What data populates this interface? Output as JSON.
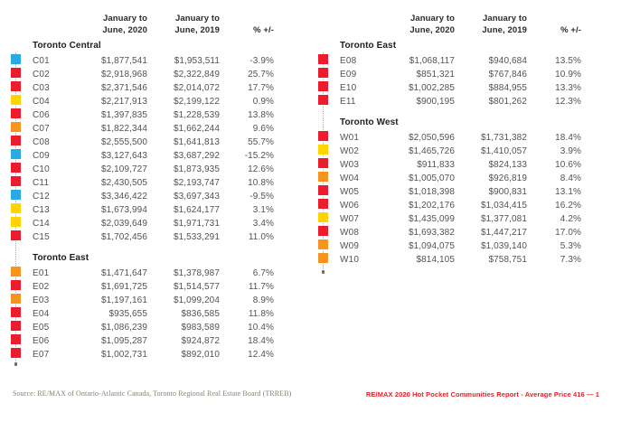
{
  "colors": {
    "blue": "#29abe2",
    "red": "#ec1b2d",
    "yellow": "#ffd400",
    "orange": "#f7941e"
  },
  "column_headers": {
    "period_2020": "January to\nJune, 2020",
    "period_2019": "January to\nJune, 2019",
    "change": "% +/-"
  },
  "tables": [
    {
      "sections": [
        {
          "title": "Toronto Central",
          "rows": [
            {
              "code": "C01",
              "color": "blue",
              "v2020": "$1,877,541",
              "v2019": "$1,953,511",
              "change": "-3.9%"
            },
            {
              "code": "C02",
              "color": "red",
              "v2020": "$2,918,968",
              "v2019": "$2,322,849",
              "change": "25.7%"
            },
            {
              "code": "C03",
              "color": "red",
              "v2020": "$2,371,546",
              "v2019": "$2,014,072",
              "change": "17.7%"
            },
            {
              "code": "C04",
              "color": "yellow",
              "v2020": "$2,217,913",
              "v2019": "$2,199,122",
              "change": "0.9%"
            },
            {
              "code": "C06",
              "color": "red",
              "v2020": "$1,397,835",
              "v2019": "$1,228,539",
              "change": "13.8%"
            },
            {
              "code": "C07",
              "color": "orange",
              "v2020": "$1,822,344",
              "v2019": "$1,662,244",
              "change": "9.6%"
            },
            {
              "code": "C08",
              "color": "red",
              "v2020": "$2,555,500",
              "v2019": "$1,641,813",
              "change": "55.7%"
            },
            {
              "code": "C09",
              "color": "blue",
              "v2020": "$3,127,643",
              "v2019": "$3,687,292",
              "change": "-15.2%"
            },
            {
              "code": "C10",
              "color": "red",
              "v2020": "$2,109,727",
              "v2019": "$1,873,935",
              "change": "12.6%"
            },
            {
              "code": "C11",
              "color": "red",
              "v2020": "$2,430,505",
              "v2019": "$2,193,747",
              "change": "10.8%"
            },
            {
              "code": "C12",
              "color": "blue",
              "v2020": "$3,346,422",
              "v2019": "$3,697,343",
              "change": "-9.5%"
            },
            {
              "code": "C13",
              "color": "yellow",
              "v2020": "$1,673,994",
              "v2019": "$1,624,177",
              "change": "3.1%"
            },
            {
              "code": "C14",
              "color": "yellow",
              "v2020": "$2,039,649",
              "v2019": "$1,971,731",
              "change": "3.4%"
            },
            {
              "code": "C15",
              "color": "red",
              "v2020": "$1,702,456",
              "v2019": "$1,533,291",
              "change": "11.0%"
            }
          ]
        },
        {
          "title": "Toronto East",
          "rows": [
            {
              "code": "E01",
              "color": "orange",
              "v2020": "$1,471,647",
              "v2019": "$1,378,987",
              "change": "6.7%"
            },
            {
              "code": "E02",
              "color": "red",
              "v2020": "$1,691,725",
              "v2019": "$1,514,577",
              "change": "11.7%"
            },
            {
              "code": "E03",
              "color": "orange",
              "v2020": "$1,197,161",
              "v2019": "$1,099,204",
              "change": "8.9%"
            },
            {
              "code": "E04",
              "color": "red",
              "v2020": "$935,655",
              "v2019": "$836,585",
              "change": "11.8%"
            },
            {
              "code": "E05",
              "color": "red",
              "v2020": "$1,086,239",
              "v2019": "$983,589",
              "change": "10.4%"
            },
            {
              "code": "E06",
              "color": "red",
              "v2020": "$1,095,287",
              "v2019": "$924,872",
              "change": "18.4%"
            },
            {
              "code": "E07",
              "color": "red",
              "v2020": "$1,002,731",
              "v2019": "$892,010",
              "change": "12.4%"
            }
          ]
        }
      ]
    },
    {
      "sections": [
        {
          "title": "Toronto East",
          "rows": [
            {
              "code": "E08",
              "color": "red",
              "v2020": "$1,068,117",
              "v2019": "$940,684",
              "change": "13.5%"
            },
            {
              "code": "E09",
              "color": "red",
              "v2020": "$851,321",
              "v2019": "$767,846",
              "change": "10.9%"
            },
            {
              "code": "E10",
              "color": "red",
              "v2020": "$1,002,285",
              "v2019": "$884,955",
              "change": "13.3%"
            },
            {
              "code": "E11",
              "color": "red",
              "v2020": "$900,195",
              "v2019": "$801,262",
              "change": "12.3%"
            }
          ]
        },
        {
          "title": "Toronto West",
          "rows": [
            {
              "code": "W01",
              "color": "red",
              "v2020": "$2,050,596",
              "v2019": "$1,731,382",
              "change": "18.4%"
            },
            {
              "code": "W02",
              "color": "yellow",
              "v2020": "$1,465,726",
              "v2019": "$1,410,057",
              "change": "3.9%"
            },
            {
              "code": "W03",
              "color": "red",
              "v2020": "$911,833",
              "v2019": "$824,133",
              "change": "10.6%"
            },
            {
              "code": "W04",
              "color": "orange",
              "v2020": "$1,005,070",
              "v2019": "$926,819",
              "change": "8.4%"
            },
            {
              "code": "W05",
              "color": "red",
              "v2020": "$1,018,398",
              "v2019": "$900,831",
              "change": "13.1%"
            },
            {
              "code": "W06",
              "color": "red",
              "v2020": "$1,202,176",
              "v2019": "$1,034,415",
              "change": "16.2%"
            },
            {
              "code": "W07",
              "color": "yellow",
              "v2020": "$1,435,099",
              "v2019": "$1,377,081",
              "change": "4.2%"
            },
            {
              "code": "W08",
              "color": "red",
              "v2020": "$1,693,382",
              "v2019": "$1,447,217",
              "change": "17.0%"
            },
            {
              "code": "W09",
              "color": "orange",
              "v2020": "$1,094,075",
              "v2019": "$1,039,140",
              "change": "5.3%"
            },
            {
              "code": "W10",
              "color": "orange",
              "v2020": "$814,105",
              "v2019": "$758,751",
              "change": "7.3%"
            }
          ]
        }
      ]
    }
  ],
  "footer": {
    "source": "Source: RE/MAX of Ontario-Atlantic Canada, Toronto Regional Real Estate Board (TRREB)",
    "report": "RE/MAX 2020 Hot Pocket Communities Report - Average Price 416 — 1"
  }
}
